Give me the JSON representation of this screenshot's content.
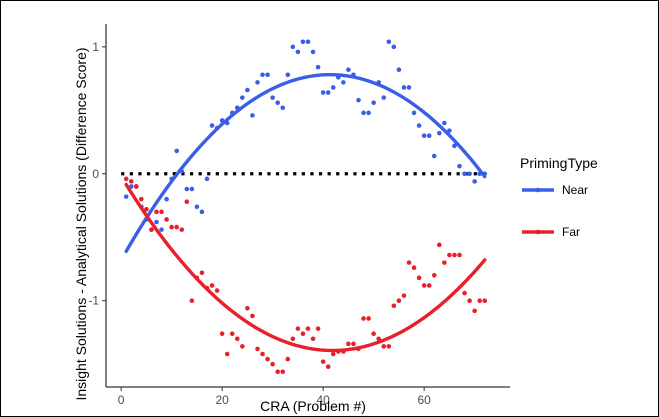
{
  "chart_data": {
    "type": "scatter",
    "title": "",
    "xlabel": "CRA (Problem #)",
    "ylabel": "Insight Solutions - Analytical Solutions (Difference Score)",
    "xlim": [
      -3,
      77
    ],
    "ylim": [
      -1.68,
      1.18
    ],
    "x_ticks": [
      0,
      20,
      40,
      60
    ],
    "x_tick_labels": [
      "0",
      "20",
      "40",
      "60"
    ],
    "y_ticks": [
      -1,
      0,
      1
    ],
    "y_tick_labels": [
      "-1",
      "0",
      "1"
    ],
    "grid": false,
    "reference_line": {
      "y": 0,
      "style": "dotted",
      "color": "#000000"
    },
    "legend": {
      "title": "PrimingType",
      "position": "right"
    },
    "series": [
      {
        "name": "Near",
        "color": "#3b5ee8",
        "fit": {
          "type": "quadratic",
          "x_range": [
            1,
            72
          ],
          "coefficients": [
            -0.6807,
            0.0707,
            -0.000855
          ]
        },
        "points": [
          [
            1,
            -0.18
          ],
          [
            2,
            -0.1
          ],
          [
            3,
            -0.1
          ],
          [
            4,
            -0.26
          ],
          [
            5,
            -0.36
          ],
          [
            6,
            -0.44
          ],
          [
            7,
            -0.38
          ],
          [
            8,
            -0.44
          ],
          [
            9,
            -0.2
          ],
          [
            10,
            -0.04
          ],
          [
            11,
            0.18
          ],
          [
            12,
            0.02
          ],
          [
            13,
            -0.12
          ],
          [
            14,
            -0.12
          ],
          [
            15,
            -0.26
          ],
          [
            16,
            -0.3
          ],
          [
            17,
            -0.04
          ],
          [
            18,
            0.38
          ],
          [
            19,
            0.36
          ],
          [
            20,
            0.42
          ],
          [
            21,
            0.4
          ],
          [
            22,
            0.48
          ],
          [
            23,
            0.52
          ],
          [
            24,
            0.6
          ],
          [
            25,
            0.66
          ],
          [
            26,
            0.46
          ],
          [
            27,
            0.72
          ],
          [
            28,
            0.78
          ],
          [
            29,
            0.78
          ],
          [
            30,
            0.6
          ],
          [
            31,
            0.56
          ],
          [
            32,
            0.52
          ],
          [
            33,
            0.78
          ],
          [
            34,
            1.0
          ],
          [
            35,
            0.96
          ],
          [
            36,
            1.04
          ],
          [
            37,
            1.04
          ],
          [
            38,
            0.96
          ],
          [
            39,
            0.84
          ],
          [
            40,
            0.64
          ],
          [
            41,
            0.64
          ],
          [
            42,
            0.68
          ],
          [
            43,
            0.76
          ],
          [
            44,
            0.72
          ],
          [
            45,
            0.82
          ],
          [
            46,
            0.78
          ],
          [
            47,
            0.58
          ],
          [
            48,
            0.48
          ],
          [
            49,
            0.48
          ],
          [
            50,
            0.56
          ],
          [
            51,
            0.72
          ],
          [
            52,
            0.6
          ],
          [
            53,
            1.04
          ],
          [
            54,
            1.0
          ],
          [
            55,
            0.82
          ],
          [
            56,
            0.68
          ],
          [
            57,
            0.68
          ],
          [
            58,
            0.48
          ],
          [
            59,
            0.38
          ],
          [
            60,
            0.3
          ],
          [
            61,
            0.3
          ],
          [
            62,
            0.14
          ],
          [
            63,
            0.32
          ],
          [
            64,
            0.4
          ],
          [
            65,
            0.34
          ],
          [
            66,
            0.22
          ],
          [
            67,
            0.06
          ],
          [
            68,
            0.0
          ],
          [
            69,
            0.0
          ],
          [
            70,
            -0.06
          ],
          [
            71,
            0.0
          ],
          [
            72,
            0.0
          ]
        ]
      },
      {
        "name": "Far",
        "color": "#e8202a",
        "fit": {
          "type": "quadratic",
          "x_range": [
            1,
            72
          ],
          "coefficients": [
            -0.0201,
            -0.0656,
            0.000784
          ]
        },
        "points": [
          [
            1,
            -0.04
          ],
          [
            2,
            -0.06
          ],
          [
            3,
            -0.1
          ],
          [
            4,
            -0.2
          ],
          [
            5,
            -0.28
          ],
          [
            6,
            -0.44
          ],
          [
            7,
            -0.3
          ],
          [
            8,
            -0.3
          ],
          [
            9,
            -0.36
          ],
          [
            10,
            -0.42
          ],
          [
            11,
            -0.42
          ],
          [
            12,
            -0.44
          ],
          [
            13,
            -0.22
          ],
          [
            14,
            -1.0
          ],
          [
            15,
            -0.82
          ],
          [
            16,
            -0.78
          ],
          [
            17,
            -0.9
          ],
          [
            18,
            -0.88
          ],
          [
            19,
            -0.92
          ],
          [
            20,
            -1.26
          ],
          [
            21,
            -1.42
          ],
          [
            22,
            -1.26
          ],
          [
            23,
            -1.3
          ],
          [
            24,
            -1.36
          ],
          [
            25,
            -1.06
          ],
          [
            26,
            -1.12
          ],
          [
            27,
            -1.38
          ],
          [
            28,
            -1.42
          ],
          [
            29,
            -1.46
          ],
          [
            30,
            -1.5
          ],
          [
            31,
            -1.56
          ],
          [
            32,
            -1.56
          ],
          [
            33,
            -1.46
          ],
          [
            34,
            -1.3
          ],
          [
            35,
            -1.22
          ],
          [
            36,
            -1.26
          ],
          [
            37,
            -1.22
          ],
          [
            38,
            -1.3
          ],
          [
            39,
            -1.22
          ],
          [
            40,
            -1.48
          ],
          [
            41,
            -1.52
          ],
          [
            42,
            -1.42
          ],
          [
            43,
            -1.4
          ],
          [
            44,
            -1.4
          ],
          [
            45,
            -1.34
          ],
          [
            46,
            -1.34
          ],
          [
            47,
            -1.38
          ],
          [
            48,
            -1.14
          ],
          [
            49,
            -1.14
          ],
          [
            50,
            -1.26
          ],
          [
            51,
            -1.3
          ],
          [
            52,
            -1.36
          ],
          [
            53,
            -1.36
          ],
          [
            54,
            -1.04
          ],
          [
            55,
            -1.0
          ],
          [
            56,
            -0.96
          ],
          [
            57,
            -0.7
          ],
          [
            58,
            -0.74
          ],
          [
            59,
            -0.82
          ],
          [
            60,
            -0.88
          ],
          [
            61,
            -0.88
          ],
          [
            62,
            -0.8
          ],
          [
            63,
            -0.56
          ],
          [
            64,
            -0.7
          ],
          [
            65,
            -0.64
          ],
          [
            66,
            -0.64
          ],
          [
            67,
            -0.64
          ],
          [
            68,
            -0.94
          ],
          [
            69,
            -1.0
          ],
          [
            70,
            -1.08
          ],
          [
            71,
            -1.0
          ],
          [
            72,
            -1.0
          ]
        ]
      }
    ]
  }
}
